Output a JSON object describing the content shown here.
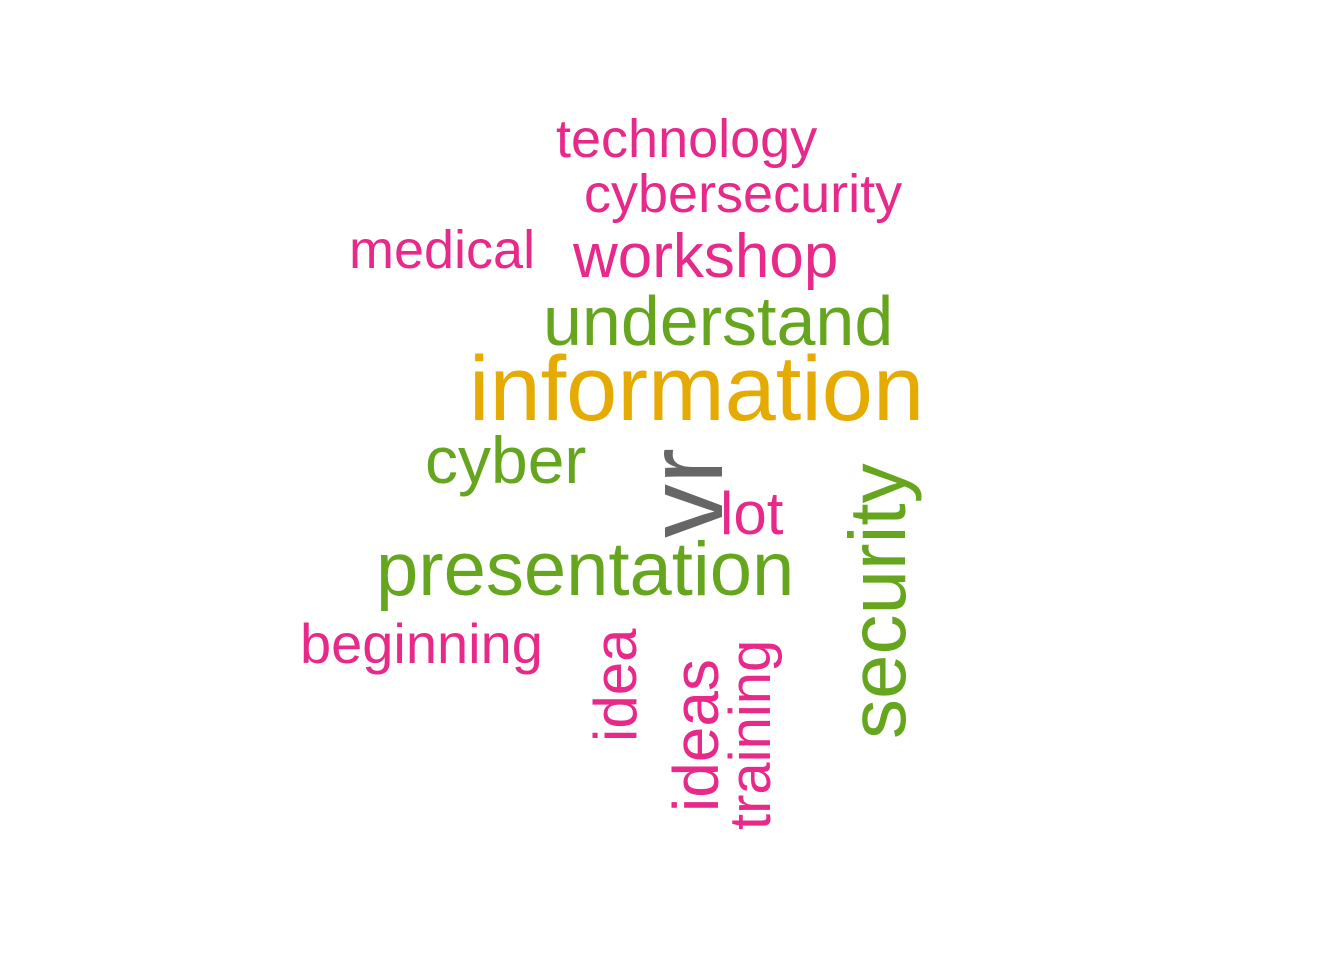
{
  "word_cloud": {
    "colors": {
      "pink": "#e7298a",
      "green": "#66a61e",
      "gold": "#e6ab02",
      "gray": "#666666",
      "background": "#ffffff"
    },
    "words": {
      "technology": "technology",
      "cybersecurity": "cybersecurity",
      "medical": "medical",
      "workshop": "workshop",
      "understand": "understand",
      "information": "information",
      "cyber": "cyber",
      "vr": "vr",
      "lot": "lot",
      "presentation": "presentation",
      "security": "security",
      "beginning": "beginning",
      "idea": "idea",
      "ideas": "ideas",
      "training": "training"
    }
  }
}
